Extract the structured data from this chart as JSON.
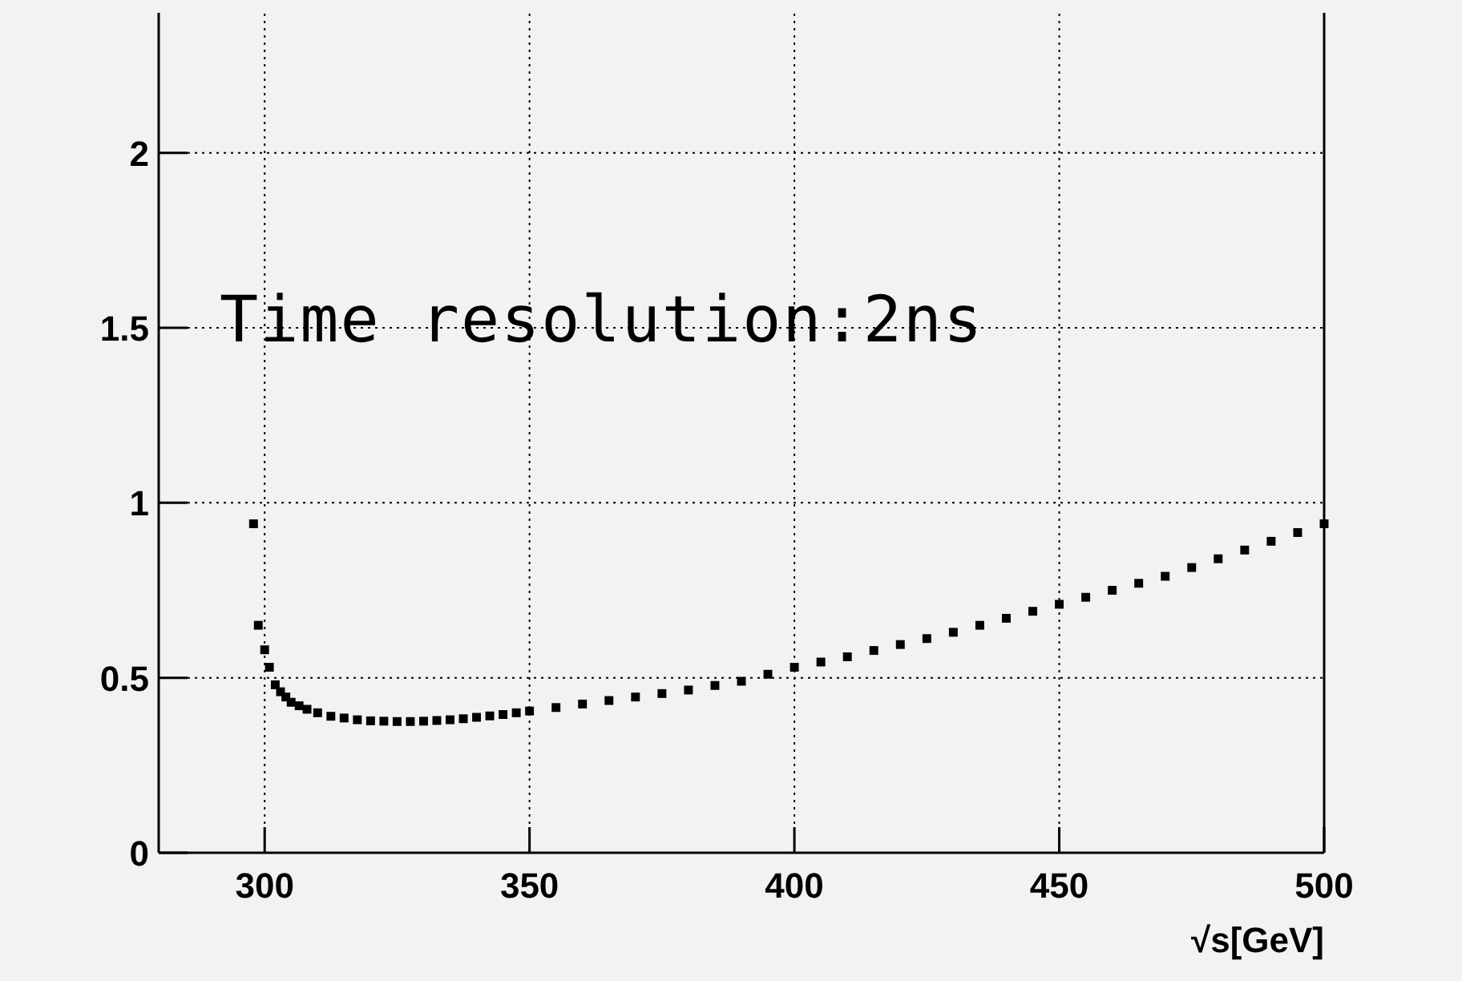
{
  "chart_data": {
    "type": "scatter",
    "xlabel": "√s[GeV]",
    "annotations": [
      "Time resolution:2ns"
    ],
    "x": [
      297.9,
      298.8,
      300,
      300.9,
      302,
      303,
      304,
      305,
      306.5,
      308,
      310,
      312.5,
      315,
      317.5,
      320,
      322.5,
      325,
      327.5,
      330,
      332.5,
      335,
      337.5,
      340,
      342.5,
      345,
      347.5,
      350,
      355,
      360,
      365,
      370,
      375,
      380,
      385,
      390,
      395,
      400,
      405,
      410,
      415,
      420,
      425,
      430,
      435,
      440,
      445,
      450,
      455,
      460,
      465,
      470,
      475,
      480,
      485,
      490,
      495,
      500
    ],
    "series": [
      {
        "color": "#000000",
        "values": [
          0.94,
          0.65,
          0.58,
          0.53,
          0.48,
          0.46,
          0.445,
          0.43,
          0.42,
          0.41,
          0.4,
          0.39,
          0.385,
          0.38,
          0.377,
          0.376,
          0.375,
          0.375,
          0.376,
          0.378,
          0.38,
          0.383,
          0.387,
          0.391,
          0.395,
          0.4,
          0.405,
          0.415,
          0.425,
          0.435,
          0.445,
          0.455,
          0.465,
          0.478,
          0.49,
          0.51,
          0.53,
          0.545,
          0.56,
          0.578,
          0.595,
          0.612,
          0.63,
          0.65,
          0.67,
          0.69,
          0.71,
          0.73,
          0.75,
          0.77,
          0.79,
          0.815,
          0.84,
          0.865,
          0.89,
          0.915,
          0.94
        ]
      }
    ],
    "xlim": [
      280,
      500
    ],
    "ylim": [
      0,
      2.4
    ],
    "xticks": [
      300,
      350,
      400,
      450,
      500
    ],
    "yticks": [
      0,
      {
        "value": 0.5,
        "label": "0.5"
      },
      1,
      {
        "value": 1.5,
        "label": "1.5"
      },
      2
    ],
    "grid": true,
    "marker": "square"
  }
}
